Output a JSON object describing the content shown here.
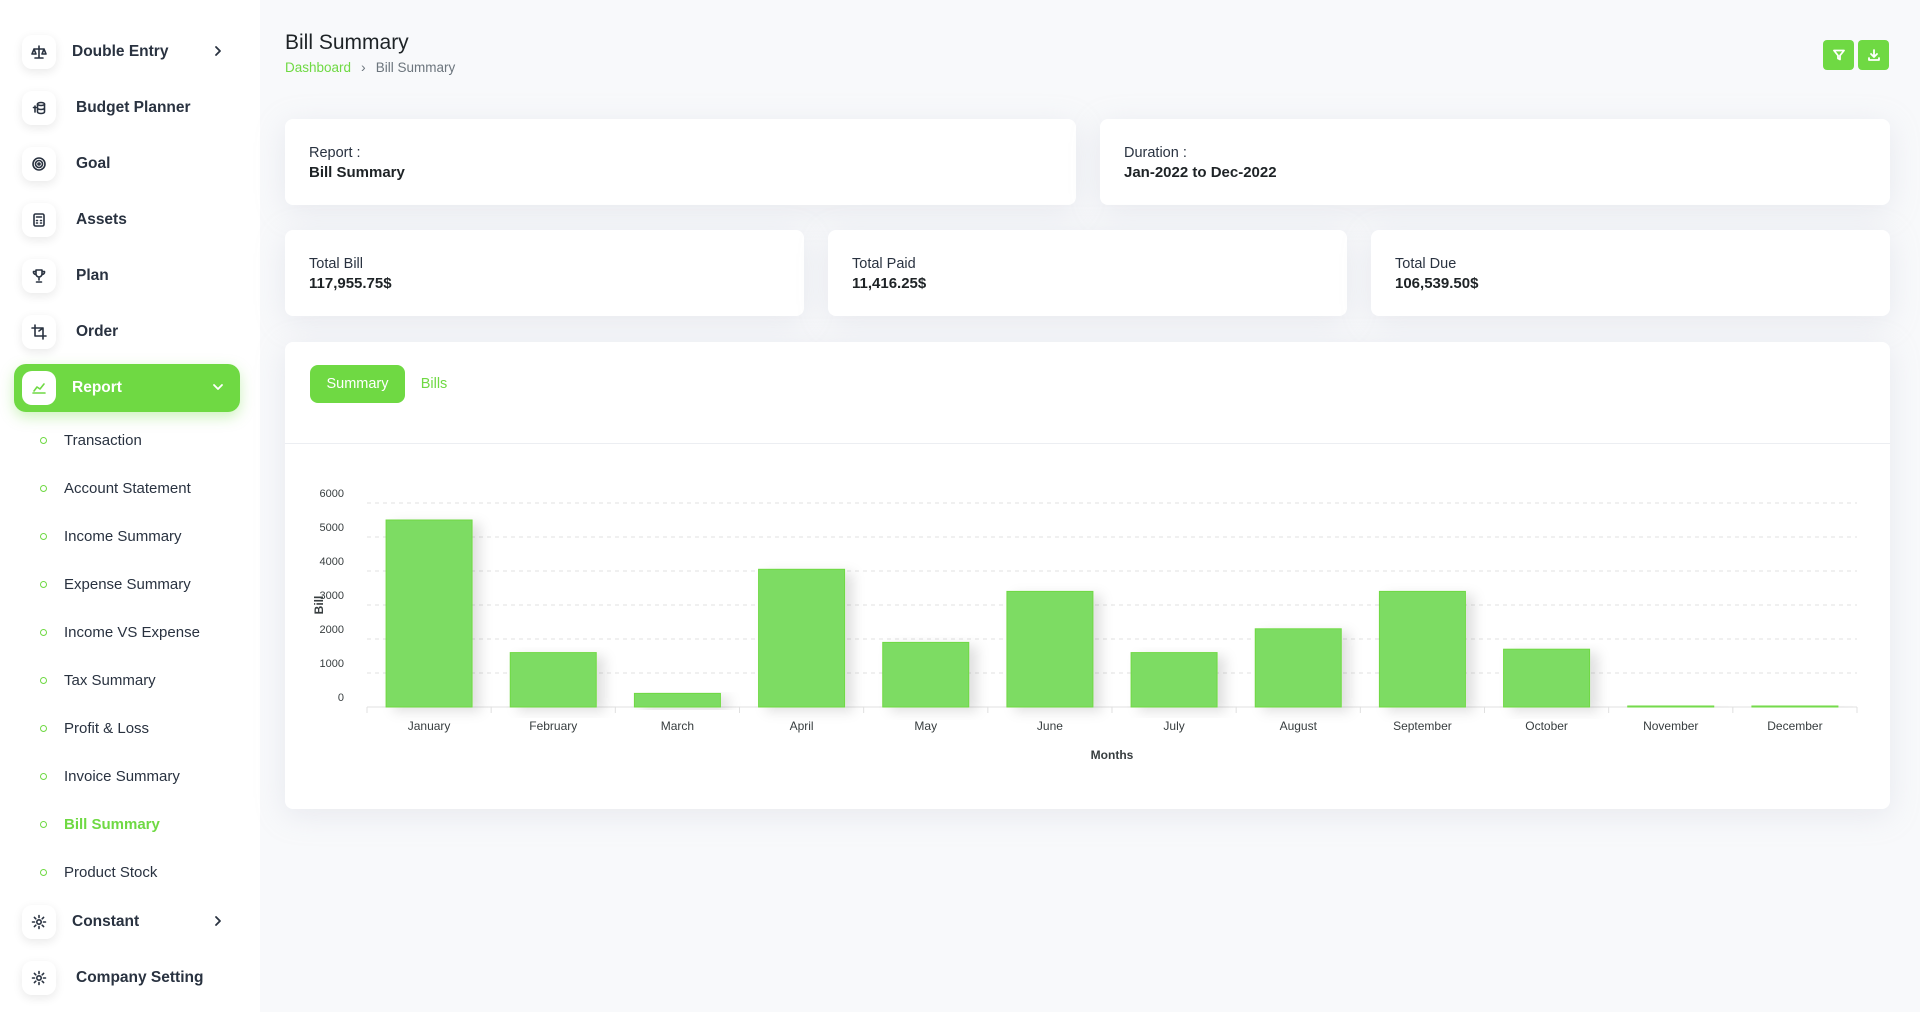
{
  "sidebar": {
    "items": [
      {
        "label": "Double Entry",
        "icon": "scale-icon",
        "has_chevron": true
      },
      {
        "label": "Budget Planner",
        "icon": "coins-icon"
      },
      {
        "label": "Goal",
        "icon": "target-icon"
      },
      {
        "label": "Assets",
        "icon": "calculator-icon"
      },
      {
        "label": "Plan",
        "icon": "trophy-icon"
      },
      {
        "label": "Order",
        "icon": "crop-icon"
      },
      {
        "label": "Report",
        "icon": "chart-line-icon",
        "active": true,
        "expanded": true
      },
      {
        "label": "Constant",
        "icon": "gear-icon",
        "has_chevron": true
      },
      {
        "label": "Company Setting",
        "icon": "gear-icon"
      }
    ],
    "report_sub": [
      "Transaction",
      "Account Statement",
      "Income Summary",
      "Expense Summary",
      "Income VS Expense",
      "Tax Summary",
      "Profit & Loss",
      "Invoice Summary",
      "Bill Summary",
      "Product Stock"
    ],
    "current_sub": "Bill Summary"
  },
  "header": {
    "title": "Bill Summary",
    "breadcrumb": {
      "home": "Dashboard",
      "current": "Bill Summary"
    },
    "buttons": [
      {
        "icon": "filter-icon"
      },
      {
        "icon": "download-icon"
      }
    ]
  },
  "info": {
    "report_label": "Report :",
    "report_value": "Bill Summary",
    "duration_label": "Duration :",
    "duration_value": "Jan-2022 to Dec-2022"
  },
  "stats": {
    "total_bill_label": "Total Bill",
    "total_bill_value": "117,955.75$",
    "total_paid_label": "Total Paid",
    "total_paid_value": "11,416.25$",
    "total_due_label": "Total Due",
    "total_due_value": "106,539.50$"
  },
  "tabs": {
    "summary": "Summary",
    "bills": "Bills",
    "active": "summary"
  },
  "colors": {
    "accent": "#6fd943",
    "bar": "#7ddc64",
    "text": "#293240"
  },
  "chart_data": {
    "type": "bar",
    "categories": [
      "January",
      "February",
      "March",
      "April",
      "May",
      "June",
      "July",
      "August",
      "September",
      "October",
      "November",
      "December"
    ],
    "values": [
      5500,
      1600,
      400,
      4050,
      1900,
      3400,
      1600,
      2300,
      3400,
      1700,
      40,
      40
    ],
    "title": "",
    "xlabel": "Months",
    "ylabel": "Bill",
    "ylim": [
      0,
      6000
    ],
    "yticks": [
      0,
      1000,
      2000,
      3000,
      4000,
      5000,
      6000
    ],
    "grid": true,
    "legend": "none"
  }
}
